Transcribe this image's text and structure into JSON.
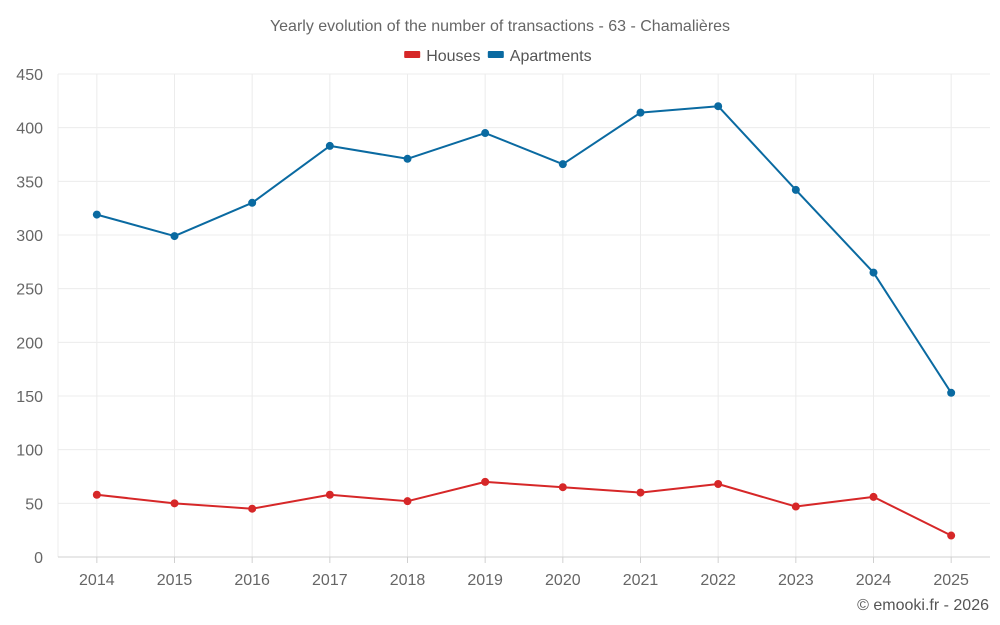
{
  "chart_data": {
    "type": "line",
    "title": "Yearly evolution of the number of transactions - 63 - Chamalières",
    "xlabel": "",
    "ylabel": "",
    "x": [
      "2014",
      "2015",
      "2016",
      "2017",
      "2018",
      "2019",
      "2020",
      "2021",
      "2022",
      "2023",
      "2024",
      "2025"
    ],
    "ylim": [
      0,
      450
    ],
    "yticks": [
      0,
      50,
      100,
      150,
      200,
      250,
      300,
      350,
      400,
      450
    ],
    "grid": true,
    "legend_position": "top-center",
    "series": [
      {
        "name": "Houses",
        "color": "#d62728",
        "values": [
          58,
          50,
          45,
          58,
          52,
          70,
          65,
          60,
          68,
          47,
          56,
          20
        ]
      },
      {
        "name": "Apartments",
        "color": "#0a6aa1",
        "values": [
          319,
          299,
          330,
          383,
          371,
          395,
          366,
          414,
          420,
          342,
          265,
          153
        ]
      }
    ],
    "credit": "© emooki.fr - 2026"
  }
}
